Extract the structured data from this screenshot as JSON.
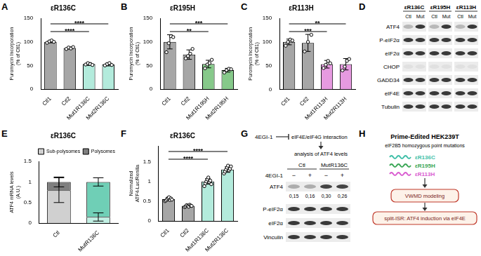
{
  "panel_labels": [
    "A",
    "B",
    "C",
    "D",
    "E",
    "F",
    "G",
    "H"
  ],
  "chart_data": [
    {
      "type": "bar",
      "title": "εR136C",
      "y_label": [
        "Puromycin Incorporation",
        "(% of Ctl1)"
      ],
      "categories": [
        "Ctl1",
        "Ctl2",
        "Mut1R136C",
        "Mut2R136C"
      ],
      "values": [
        100,
        87,
        53,
        52
      ],
      "errors": [
        2,
        2,
        3,
        3
      ],
      "points": [
        [
          98,
          101,
          103,
          100
        ],
        [
          85,
          88,
          86,
          89
        ],
        [
          52,
          55,
          53,
          51
        ],
        [
          50,
          53,
          55,
          51
        ]
      ],
      "colors": [
        "#a6a6a6",
        "#a6a6a6",
        "#b3ebdc",
        "#b3ebdc"
      ],
      "significance": [
        {
          "from": "Ctl1",
          "to": "Mut1R136C",
          "label": "****"
        },
        {
          "from": "Ctl1",
          "to": "Mut2R136C",
          "label": "****"
        }
      ],
      "ylim": [
        0,
        150
      ],
      "yticks": [
        0,
        50,
        100,
        150
      ],
      "grid": false
    },
    {
      "type": "bar",
      "title": "εR195H",
      "y_label": [
        "Puromycin Incorporation",
        "(% of Ctl1)"
      ],
      "categories": [
        "Ctl1",
        "Ctl2",
        "Mut1R195H",
        "Mut2R195H"
      ],
      "values": [
        100,
        73,
        53,
        40
      ],
      "errors": [
        15,
        10,
        8,
        4
      ],
      "points": [
        [
          78,
          97,
          112,
          110
        ],
        [
          65,
          70,
          75,
          85
        ],
        [
          44,
          52,
          55,
          62
        ],
        [
          35,
          40,
          43,
          42
        ]
      ],
      "colors": [
        "#a6a6a6",
        "#a6a6a6",
        "#86c98a",
        "#86c98a"
      ],
      "significance": [
        {
          "from": "Ctl1",
          "to": "Mut1R195H",
          "label": "**"
        },
        {
          "from": "Ctl1",
          "to": "Mut2R195H",
          "label": "***"
        }
      ],
      "ylim": [
        0,
        150
      ],
      "yticks": [
        0,
        50,
        100,
        150
      ],
      "grid": false
    },
    {
      "type": "bar",
      "title": "εR113H",
      "y_label": [
        "Puromycin Incorporation",
        "(% of Ctl1)"
      ],
      "categories": [
        "Ctl1",
        "Ctl2",
        "Mut1R113H",
        "Mut2R113H"
      ],
      "values": [
        100,
        98,
        53,
        53
      ],
      "errors": [
        6,
        18,
        8,
        12
      ],
      "points": [
        [
          92,
          100,
          105,
          103
        ],
        [
          80,
          100,
          115
        ],
        [
          45,
          52,
          60,
          55
        ],
        [
          40,
          48,
          60,
          64
        ]
      ],
      "colors": [
        "#a6a6a6",
        "#a6a6a6",
        "#e69ae0",
        "#e69ae0"
      ],
      "significance": [
        {
          "from": "Ctl1",
          "to": "Mut1R113H",
          "label": "***"
        },
        {
          "from": "Ctl1",
          "to": "Mut2R113H",
          "label": "**"
        }
      ],
      "ylim": [
        0,
        150
      ],
      "yticks": [
        0,
        50,
        100,
        150
      ],
      "grid": false
    },
    {
      "type": "bar",
      "stacked": true,
      "title": "εR136C",
      "y_label": [
        "ATF4 mRNA levels",
        "(A.U.)"
      ],
      "categories": [
        "Ctl",
        "MutR136C"
      ],
      "series": [
        {
          "name": "Sub-polysomes",
          "colors": [
            "#d0d0d0",
            "#c2f0e4"
          ],
          "values": [
            0.8,
            0.15
          ],
          "errors": [
            0.3,
            0.1
          ]
        },
        {
          "name": "Polysomes",
          "colors": [
            "#7f7f7f",
            "#6fcfb6"
          ],
          "values": [
            0.2,
            0.85
          ],
          "errors": [
            0.12,
            0.1
          ]
        }
      ],
      "ylim": [
        0,
        1.5
      ],
      "yticks": [
        0,
        0.5,
        1,
        1.5
      ],
      "legend": "top-right",
      "grid": false
    },
    {
      "type": "bar",
      "title": "εR136C",
      "y_label": [
        "Normalized",
        "ATF4-Luc/Renilla"
      ],
      "categories": [
        "Ctl1",
        "Ctl2",
        "Mut1R136C",
        "Mut2R136C"
      ],
      "values": [
        0.55,
        0.38,
        1.0,
        1.3
      ],
      "errors": [
        0.04,
        0.03,
        0.07,
        0.07
      ],
      "points": [
        [
          0.5,
          0.52,
          0.55,
          0.58,
          0.6,
          0.53,
          0.57,
          0.54
        ],
        [
          0.35,
          0.37,
          0.4,
          0.38,
          0.36,
          0.41,
          0.39,
          0.38
        ],
        [
          0.88,
          0.95,
          1.0,
          1.05,
          1.1,
          0.98,
          1.02,
          0.93
        ],
        [
          1.2,
          1.25,
          1.3,
          1.35,
          1.4,
          1.28,
          1.32,
          1.38
        ]
      ],
      "colors": [
        "#a6a6a6",
        "#a6a6a6",
        "#b3ebdc",
        "#b3ebdc"
      ],
      "significance": [
        {
          "from": "Ctl1",
          "to": "Mut1R136C",
          "label": "****"
        },
        {
          "from": "Ctl1",
          "to": "Mut2R136C",
          "label": "****"
        }
      ],
      "ylim": [
        0,
        1.9
      ],
      "yticks": [
        0,
        0.5,
        1,
        1.5
      ],
      "grid": false
    }
  ],
  "blot_d": {
    "columns": [
      {
        "title": "εR136C",
        "lanes": [
          "Ctl",
          "Mut"
        ]
      },
      {
        "title": "εR195H",
        "lanes": [
          "Ctl",
          "Mut"
        ]
      },
      {
        "title": "εR113H",
        "lanes": [
          "Ctl",
          "Mut"
        ]
      }
    ],
    "rows": [
      "ATF4",
      "P-eIF2α",
      "eIF2α",
      "CHOP",
      "GADD34",
      "eIF4E",
      "Tubulin"
    ]
  },
  "panel_g": {
    "scheme": {
      "inhibitor": "4EGI-1",
      "target": "eIF4E/eIF4G interaction",
      "readout": "analysis of ATF4 levels"
    },
    "blot": {
      "groups": [
        "Ctl",
        "MutR136C"
      ],
      "treatment": "4EGI-1",
      "treatment_marks": [
        "−",
        "+",
        "−",
        "+"
      ],
      "rows": [
        "ATF4",
        "P-eIF2α",
        "eIF2α",
        "Vinculin"
      ],
      "quantification": [
        "0,15",
        "0,16",
        "0,30",
        "0,26"
      ]
    }
  },
  "panel_h": {
    "title": "Prime-Edited HEK239T",
    "subtitle": "eIF2B5 homozygous point mutations",
    "mutations": [
      {
        "label": "εR136C",
        "color": "#3fbfa8"
      },
      {
        "label": "εR195H",
        "color": "#3aa655"
      },
      {
        "label": "εR113H",
        "color": "#d95bd0"
      }
    ],
    "steps": [
      "VWMD modeling",
      "split-ISR: ATF4 induction via eIF4E"
    ]
  }
}
